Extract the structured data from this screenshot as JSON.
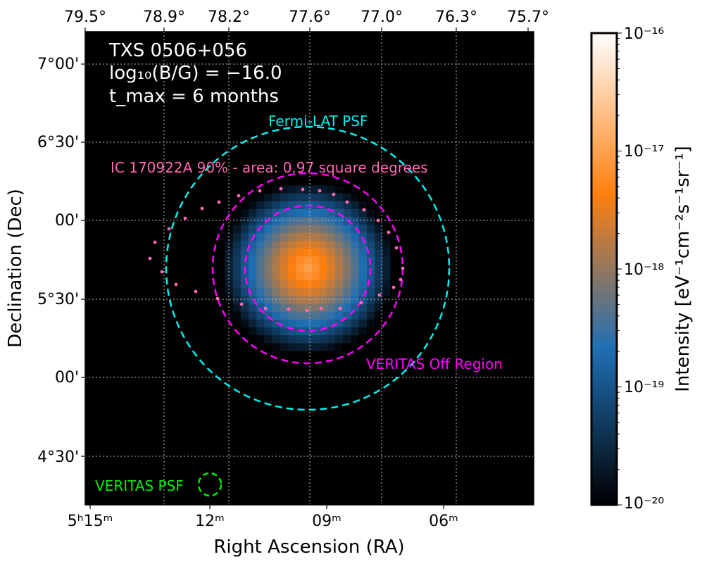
{
  "chart_data": {
    "type": "heatmap",
    "source_name": "TXS 0506+056",
    "field_line": "log₁₀(B/G) = −16.0",
    "field_value": -16.0,
    "time_line": "t_max = 6 months",
    "tmax_months": 6,
    "xlabel": "Right Ascension (RA)",
    "ylabel": "Declination (Dec)",
    "ra_ticks_bottom": [
      "5ʰ15ᵐ",
      "12ᵐ",
      "09ᵐ",
      "06ᵐ"
    ],
    "ra_ticks_top": [
      "79.5°",
      "78.9°",
      "78.2°",
      "77.6°",
      "77.0°",
      "76.3°",
      "75.7°"
    ],
    "dec_ticks": [
      "7°00'",
      "6°30'",
      "00'",
      "5°30'",
      "00'",
      "4°30'"
    ],
    "dec_tick_values_deg": [
      7.0,
      6.5,
      6.0,
      5.5,
      5.0,
      4.5
    ],
    "ra_tick_values_min": [
      15,
      12,
      9,
      6
    ],
    "center_ra_deg": 77.36,
    "center_dec_deg": 5.69,
    "colorbar": {
      "label": "Intensity [eV⁻¹cm⁻²s⁻¹sr⁻¹]",
      "scale": "log",
      "range": [
        1e-20,
        1e-16
      ],
      "ticks": [
        "10⁻¹⁶",
        "10⁻¹⁷",
        "10⁻¹⁸",
        "10⁻¹⁹",
        "10⁻²⁰"
      ],
      "colormap": [
        "#000000",
        "#1f6fb4",
        "#ff7f0e",
        "#ffffff"
      ]
    },
    "regions": [
      {
        "name": "Fermi-LAT PSF",
        "color": "#00f0f0",
        "radius_deg": 0.9
      },
      {
        "name": "VERITAS Off Region",
        "color": "#ff00ff",
        "radius_deg": 0.6
      },
      {
        "name": "VERITAS On Region",
        "color": "#ff00ff",
        "radius_deg": 0.4
      },
      {
        "name": "VERITAS PSF",
        "color": "#00ee00",
        "radius_deg": 0.07
      }
    ],
    "ic_contour": {
      "label": "IC 170922A 90% - area: 0.97 square degrees",
      "color": "#ff69b4",
      "area_sq_deg": 0.97
    },
    "peak_intensity": 1e-17
  }
}
